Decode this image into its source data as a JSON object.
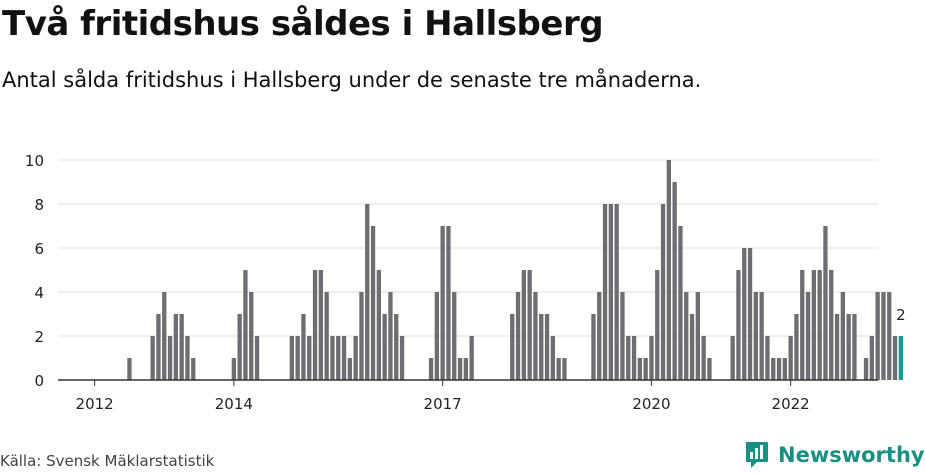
{
  "header": {
    "title": "Två fritidshus såldes i Hallsberg",
    "subtitle": "Antal sålda fritidshus i Hallsberg under de senaste tre månaderna."
  },
  "footer": {
    "source": "Källa: Svensk Mäklarstatistik",
    "brand": "Newsworthy",
    "brand_icon": "newsworthy-logo-icon"
  },
  "colors": {
    "bar": "#6e6d72",
    "highlight": "#169a93",
    "grid": "#dddddd",
    "axis": "#333333",
    "brand": "#1a8f84"
  },
  "chart_data": {
    "type": "bar",
    "title": "Antal sålda fritidshus i Hallsberg",
    "xlabel": "",
    "ylabel": "",
    "ylim": [
      0,
      10
    ],
    "yticks": [
      0,
      2,
      4,
      6,
      8,
      10
    ],
    "xtick_labels": [
      "2012",
      "2014",
      "2017",
      "2020",
      "2022"
    ],
    "highlight_label": "2",
    "values": [
      0,
      0,
      0,
      0,
      0,
      0,
      1,
      0,
      0,
      0,
      2,
      3,
      4,
      2,
      3,
      3,
      2,
      1,
      0,
      0,
      0,
      0,
      0,
      0,
      1,
      3,
      5,
      4,
      2,
      0,
      0,
      0,
      0,
      0,
      2,
      2,
      3,
      2,
      5,
      5,
      4,
      2,
      2,
      2,
      1,
      2,
      4,
      8,
      7,
      5,
      3,
      4,
      3,
      2,
      0,
      0,
      0,
      0,
      1,
      4,
      7,
      7,
      4,
      1,
      1,
      2,
      0,
      0,
      0,
      0,
      0,
      0,
      3,
      4,
      5,
      5,
      4,
      3,
      3,
      2,
      1,
      1,
      0,
      0,
      0,
      0,
      3,
      4,
      8,
      8,
      8,
      4,
      2,
      2,
      1,
      1,
      2,
      5,
      8,
      10,
      9,
      7,
      4,
      3,
      4,
      2,
      1,
      0,
      0,
      0,
      2,
      5,
      6,
      6,
      4,
      4,
      2,
      1,
      1,
      1,
      2,
      3,
      5,
      4,
      5,
      5,
      7,
      5,
      3,
      4,
      3,
      3,
      0,
      1,
      2,
      4,
      4,
      4,
      2,
      2
    ]
  }
}
